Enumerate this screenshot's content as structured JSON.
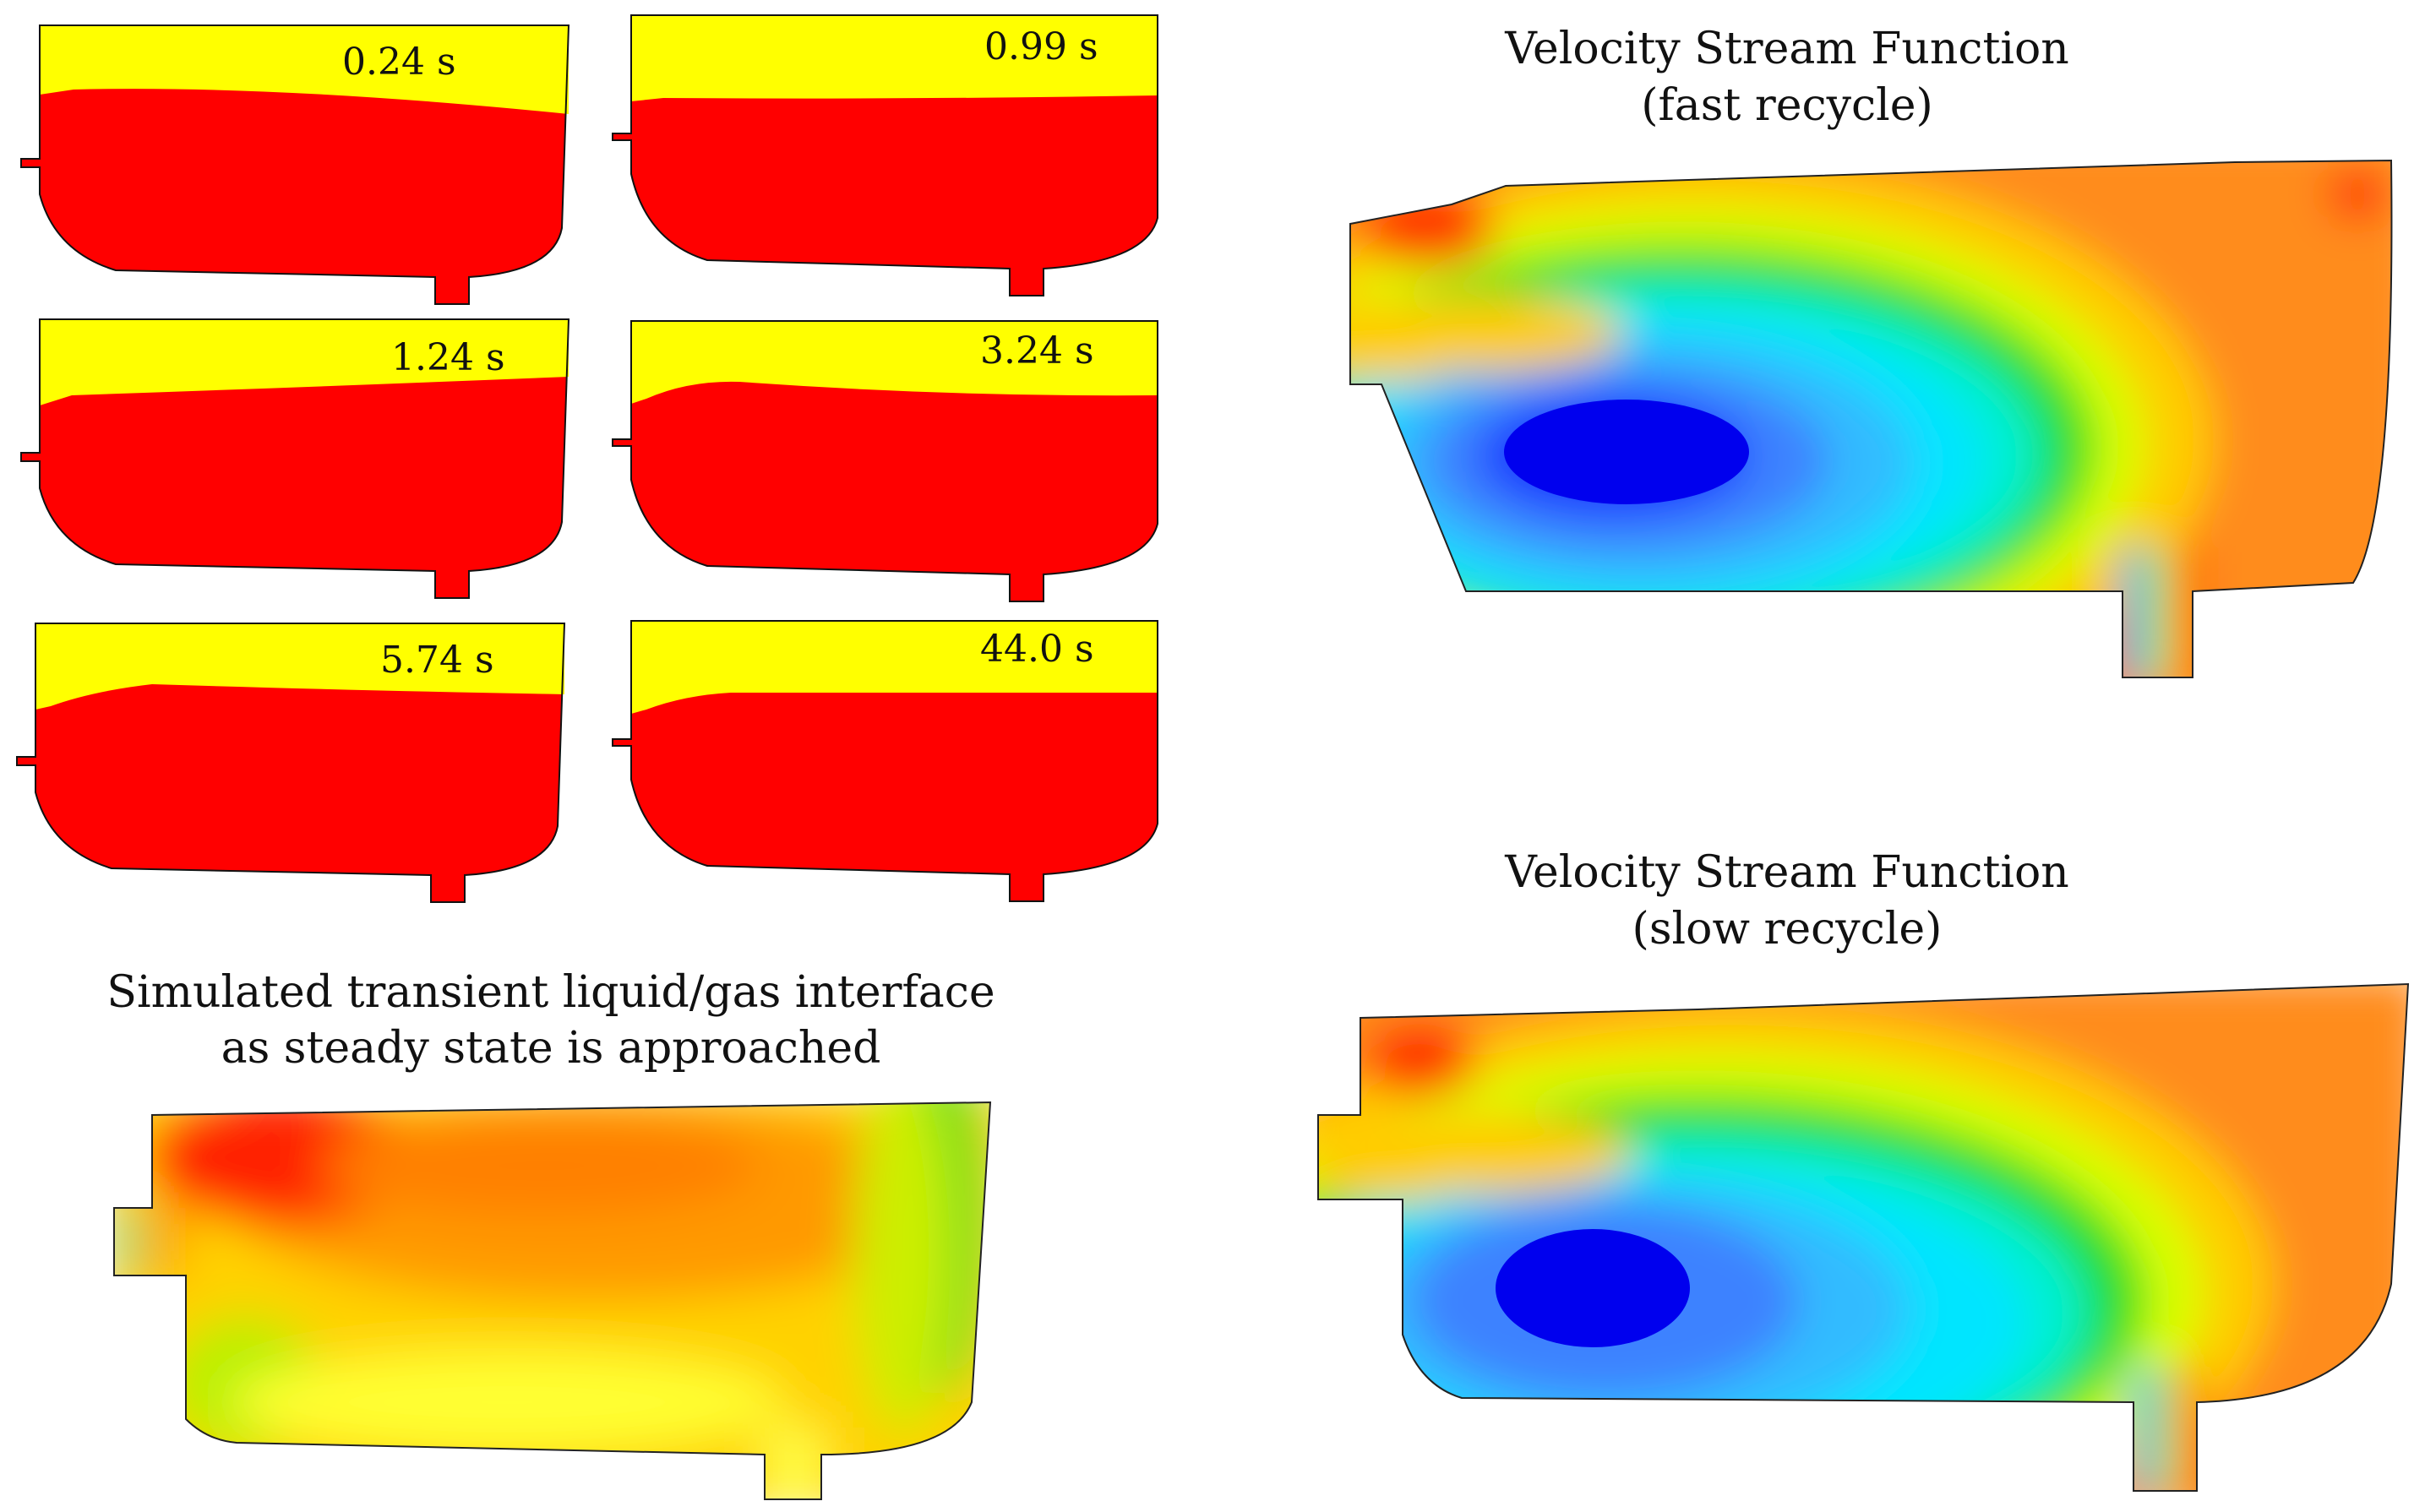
{
  "colors": {
    "gas": "#ffff00",
    "liquid": "#ff0000",
    "outline": "#111111"
  },
  "transient_panels": {
    "times": [
      "0.24 s",
      "0.99 s",
      "1.24 s",
      "3.24 s",
      "5.74 s",
      "44.0 s"
    ],
    "caption_line1": "Simulated transient liquid/gas interface",
    "caption_line2": "as steady state is approached"
  },
  "fast_recycle": {
    "title_line1": "Velocity Stream Function",
    "title_line2": "(fast recycle)"
  },
  "slow_recycle": {
    "title_line1": "Velocity Stream Function",
    "title_line2": "(slow recycle)"
  }
}
